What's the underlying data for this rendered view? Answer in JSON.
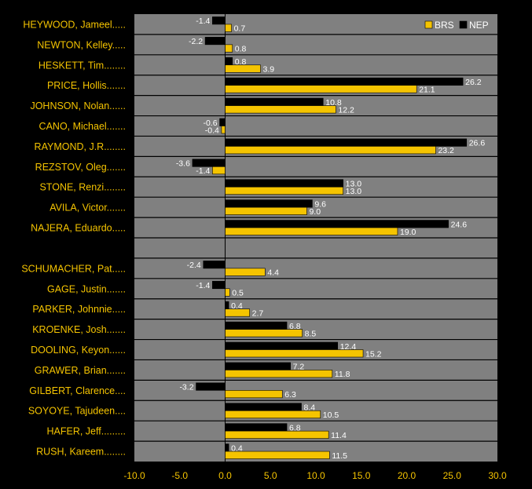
{
  "chart_data": {
    "type": "bar",
    "orientation": "horizontal",
    "categories": [
      "HEYWOOD, Jameel.....",
      "NEWTON, Kelley.....",
      "HESKETT, Tim........",
      "PRICE, Hollis.......",
      "JOHNSON, Nolan......",
      "CANO, Michael.......",
      "RAYMOND, J.R........",
      "REZSTOV, Oleg.......",
      "STONE, Renzi........",
      "AVILA, Victor.......",
      "NAJERA, Eduardo.....",
      "",
      "SCHUMACHER, Pat.....",
      "GAGE, Justin.......",
      "PARKER, Johnnie.....",
      "KROENKE, Josh.......",
      "DOOLING, Keyon......",
      "GRAWER, Brian.......",
      "GILBERT, Clarence....",
      "SOYOYE, Tajudeen....",
      "HAFER, Jeff.........",
      "RUSH, Kareem........"
    ],
    "series": [
      {
        "name": "NEP",
        "color": "#000000",
        "values": [
          -1.4,
          -2.2,
          0.8,
          26.2,
          10.8,
          -0.6,
          26.6,
          -3.6,
          13.0,
          9.6,
          24.6,
          null,
          -2.4,
          -1.4,
          0.4,
          6.8,
          12.4,
          7.2,
          -3.2,
          8.4,
          6.8,
          0.4
        ],
        "labels": [
          "-1.4",
          "-2.2",
          "0.8",
          "26.2",
          "10.8",
          "-0.6",
          "26.6",
          "-3.6",
          "13.0",
          "9.6",
          "24.6",
          "",
          "-2.4",
          "-1.4",
          "0.4",
          "6.8",
          "12.4",
          "7.2",
          "-3.2",
          "8.4",
          "6.8",
          "0.4"
        ]
      },
      {
        "name": "BRS",
        "color": "#F5C400",
        "values": [
          0.7,
          0.8,
          3.9,
          21.1,
          12.2,
          -0.4,
          23.2,
          -1.4,
          13.0,
          9.0,
          19.0,
          null,
          4.4,
          0.5,
          2.7,
          8.5,
          15.2,
          11.8,
          6.3,
          10.5,
          11.4,
          11.5
        ],
        "labels": [
          "0.7",
          "0.8",
          "3.9",
          "21.1",
          "12.2",
          "-0.4",
          "23.2",
          "-1.4",
          "13.0",
          "9.0",
          "19.0",
          "",
          "4.4",
          "0.5",
          "2.7",
          "8.5",
          "15.2",
          "11.8",
          "6.3",
          "10.5",
          "11.4",
          "11.5"
        ]
      }
    ],
    "xlim": [
      -10,
      30
    ],
    "xticks": [
      "-10.0",
      "-5.0",
      "0.0",
      "5.0",
      "10.0",
      "15.0",
      "20.0",
      "25.0",
      "30.0"
    ],
    "legend": {
      "placement": "top-right",
      "order": [
        "BRS",
        "NEP"
      ]
    },
    "grid": "horizontal",
    "colors": {
      "background": "#000000",
      "plot_background": "#808080",
      "category_label": "#F5C400",
      "value_label": "#FFFFFF",
      "axis_label": "#F5C400",
      "separator": "#000000"
    }
  }
}
